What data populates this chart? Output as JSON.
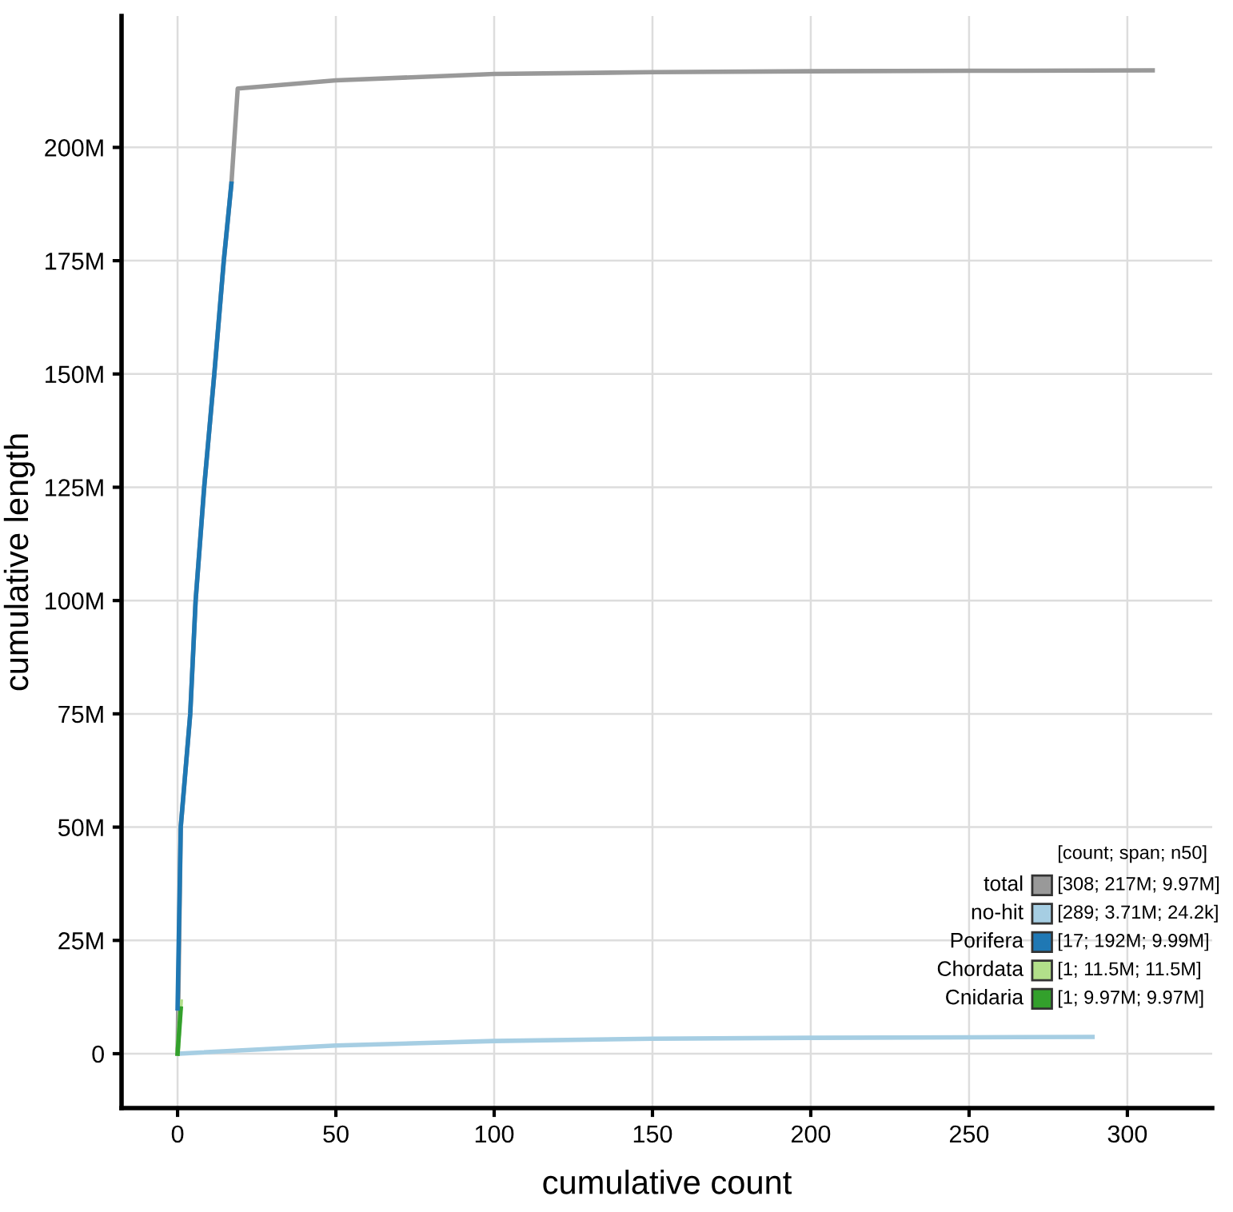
{
  "chart_data": {
    "type": "line",
    "xlabel": "cumulative count",
    "ylabel": "cumulative length",
    "xlim": [
      -17.7,
      326.8
    ],
    "ylim": [
      -12000000,
      229000000
    ],
    "xticks": [
      0,
      50,
      100,
      150,
      200,
      250,
      300
    ],
    "yticks": [
      {
        "value": 0,
        "label": "0"
      },
      {
        "value": 25000000,
        "label": "25M"
      },
      {
        "value": 50000000,
        "label": "50M"
      },
      {
        "value": 75000000,
        "label": "75M"
      },
      {
        "value": 100000000,
        "label": "100M"
      },
      {
        "value": 125000000,
        "label": "125M"
      },
      {
        "value": 150000000,
        "label": "150M"
      },
      {
        "value": 175000000,
        "label": "175M"
      },
      {
        "value": 200000000,
        "label": "200M"
      }
    ],
    "grid": true,
    "legend": "bottom right",
    "legend_title": "[count; span; n50]",
    "annotations": [
      "[308; 217M; 9.97M]",
      "[289; 3.71M; 24.2k]",
      "[17; 192M; 9.99M]",
      "[1; 11.5M; 11.5M]",
      "[1; 9.97M; 9.97M]"
    ],
    "series": [
      {
        "name": "total",
        "color": "#999999",
        "x": [
          0,
          1,
          4,
          5.7,
          8.4,
          11.6,
          14.6,
          17,
          19,
          50,
          100,
          150,
          200,
          250,
          308
        ],
        "values": [
          0,
          50000000,
          75000000,
          100000000,
          125000000,
          150000000,
          175000000,
          192000000,
          213000000,
          214800000,
          216200000,
          216600000,
          216800000,
          216900000,
          217000000
        ]
      },
      {
        "name": "no-hit",
        "color": "#a6cee3",
        "x": [
          0,
          50,
          100,
          150,
          200,
          250,
          289
        ],
        "values": [
          0,
          1800000,
          2800000,
          3300000,
          3500000,
          3600000,
          3710000
        ]
      },
      {
        "name": "Porifera",
        "color": "#1f78b4",
        "x": [
          0,
          1,
          4,
          5.7,
          8.4,
          11.6,
          14.6,
          17
        ],
        "values": [
          10000000,
          50000000,
          75000000,
          100000000,
          125000000,
          150000000,
          175000000,
          192000000
        ]
      },
      {
        "name": "Chordata",
        "color": "#b2df8a",
        "x": [
          0,
          1
        ],
        "values": [
          0,
          11500000
        ]
      },
      {
        "name": "Cnidaria",
        "color": "#33a02c",
        "x": [
          0,
          1
        ],
        "values": [
          0,
          9970000
        ]
      }
    ]
  }
}
